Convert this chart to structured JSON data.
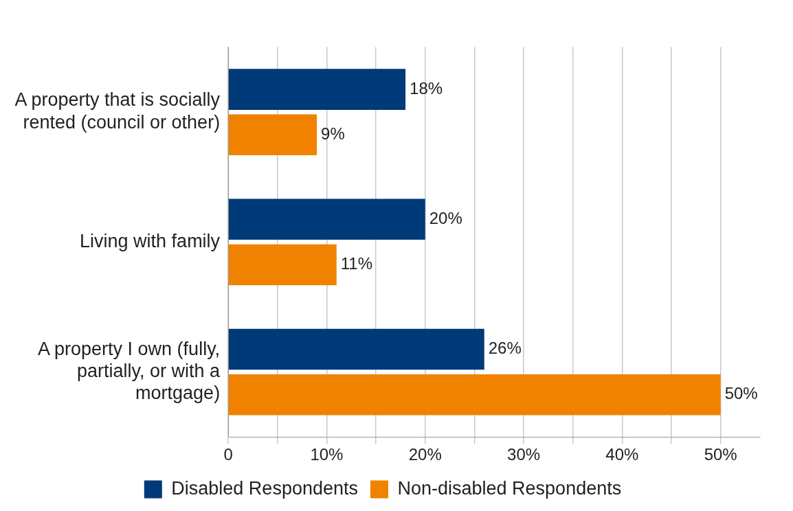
{
  "chart_data": {
    "type": "bar",
    "orientation": "horizontal",
    "categories": [
      "A property that is socially rented (council or other)",
      "Living with family",
      "A property I own (fully, partially, or with a mortgage)"
    ],
    "series": [
      {
        "name": "Disabled Respondents",
        "color": "#003a78",
        "values": [
          18,
          20,
          26
        ],
        "value_labels": [
          "18%",
          "20%",
          "26%"
        ]
      },
      {
        "name": "Non-disabled Respondents",
        "color": "#f08200",
        "values": [
          9,
          11,
          50
        ],
        "value_labels": [
          "9%",
          "11%",
          "50%"
        ]
      }
    ],
    "xlim": [
      0,
      54
    ],
    "xticks": [
      0,
      {
        "value": 5,
        "label": null
      },
      {
        "value": 10,
        "label": "10%"
      },
      {
        "value": 15,
        "label": null
      },
      {
        "value": 20,
        "label": "20%"
      },
      {
        "value": 25,
        "label": null
      },
      {
        "value": 30,
        "label": "30%"
      },
      {
        "value": 35,
        "label": null
      },
      {
        "value": 40,
        "label": "40%"
      },
      {
        "value": 45,
        "label": null
      },
      {
        "value": 50,
        "label": "50%"
      }
    ],
    "grid": "x",
    "legend": "bottom"
  }
}
